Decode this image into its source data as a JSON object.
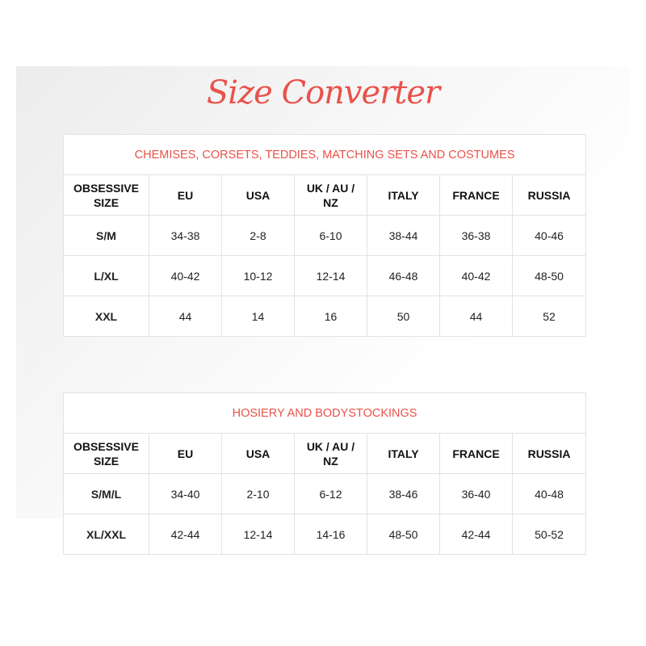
{
  "title": "Size Converter",
  "accent_color": "#e8524a",
  "columns": [
    "OBSESSIVE SIZE",
    "EU",
    "USA",
    "UK / AU / NZ",
    "ITALY",
    "FRANCE",
    "RUSSIA"
  ],
  "tables": [
    {
      "caption": "CHEMISES, CORSETS, TEDDIES, MATCHING SETS AND COSTUMES",
      "rows": [
        [
          "S/M",
          "34-38",
          "2-8",
          "6-10",
          "38-44",
          "36-38",
          "40-46"
        ],
        [
          "L/XL",
          "40-42",
          "10-12",
          "12-14",
          "46-48",
          "40-42",
          "48-50"
        ],
        [
          "XXL",
          "44",
          "14",
          "16",
          "50",
          "44",
          "52"
        ]
      ]
    },
    {
      "caption": "HOSIERY AND BODYSTOCKINGS",
      "rows": [
        [
          "S/M/L",
          "34-40",
          "2-10",
          "6-12",
          "38-46",
          "36-40",
          "40-48"
        ],
        [
          "XL/XXL",
          "42-44",
          "12-14",
          "14-16",
          "48-50",
          "42-44",
          "50-52"
        ]
      ]
    }
  ]
}
